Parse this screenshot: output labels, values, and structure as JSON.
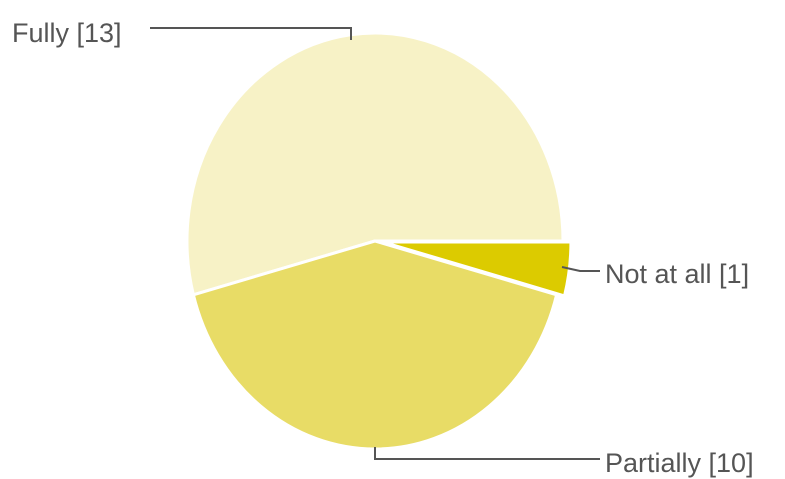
{
  "chart_data": {
    "type": "pie",
    "slices": [
      {
        "label": "Fully",
        "value": 13,
        "display": "Fully [13]",
        "color": "#f7f2c6"
      },
      {
        "label": "Not at all",
        "value": 1,
        "display": "Not at all [1]",
        "color": "#dccb00"
      },
      {
        "label": "Partially",
        "value": 10,
        "display": "Partially [10]",
        "color": "#e8dc66"
      }
    ],
    "legend": "none",
    "label_style": "leader-lines"
  }
}
